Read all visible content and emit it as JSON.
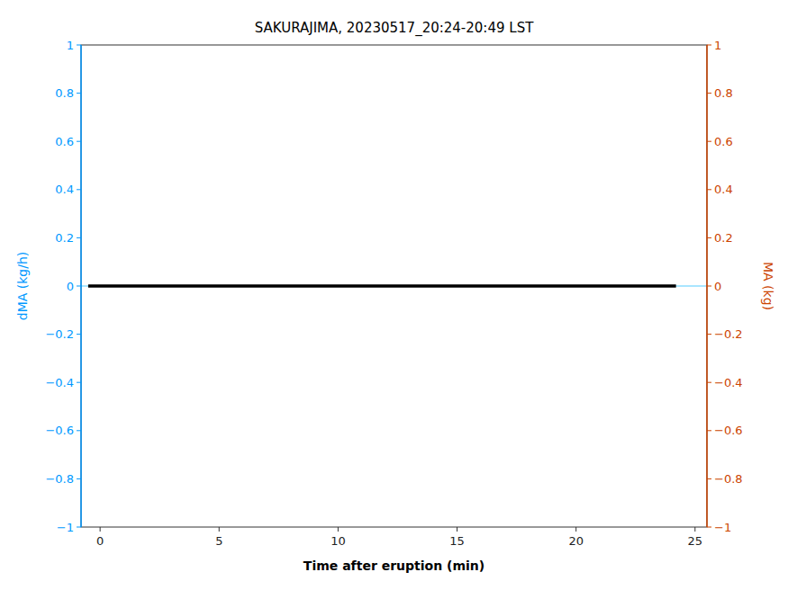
{
  "chart_data": {
    "type": "line",
    "title": "SAKURAJIMA, 20230517_20:24-20:49 LST",
    "xlabel": "Time after eruption (min)",
    "ylabel": "dMA (kg/h)",
    "y2label": "MA (kg)",
    "axis_colors": {
      "y": "#0099FF",
      "y2": "#CC4400"
    },
    "xlim": [
      -0.8,
      25.5
    ],
    "ylim": [
      -1,
      1
    ],
    "y2lim": [
      -1,
      1
    ],
    "xticks": [
      0,
      5,
      10,
      15,
      20,
      25
    ],
    "yticks": [
      {
        "value": -1,
        "label": "−1"
      },
      {
        "value": -0.8,
        "label": "−0.8"
      },
      {
        "value": -0.6,
        "label": "−0.6"
      },
      {
        "value": -0.4,
        "label": "−0.4"
      },
      {
        "value": -0.2,
        "label": "−0.2"
      },
      0,
      0.2,
      0.4,
      0.6,
      0.8,
      1
    ],
    "y2ticks": [
      {
        "value": -1,
        "label": "−1"
      },
      {
        "value": -0.8,
        "label": "−0.8"
      },
      {
        "value": -0.6,
        "label": "−0.6"
      },
      {
        "value": -0.4,
        "label": "−0.4"
      },
      {
        "value": -0.2,
        "label": "−0.2"
      },
      0,
      0.2,
      0.4,
      0.6,
      0.8,
      1
    ],
    "grid": false,
    "series": [
      {
        "x": [
          -0.5,
          24.2
        ],
        "values": [
          0,
          0
        ],
        "color": "#000000"
      }
    ],
    "hlines": [
      {
        "y": 0,
        "color": "#55CCFF"
      }
    ]
  }
}
